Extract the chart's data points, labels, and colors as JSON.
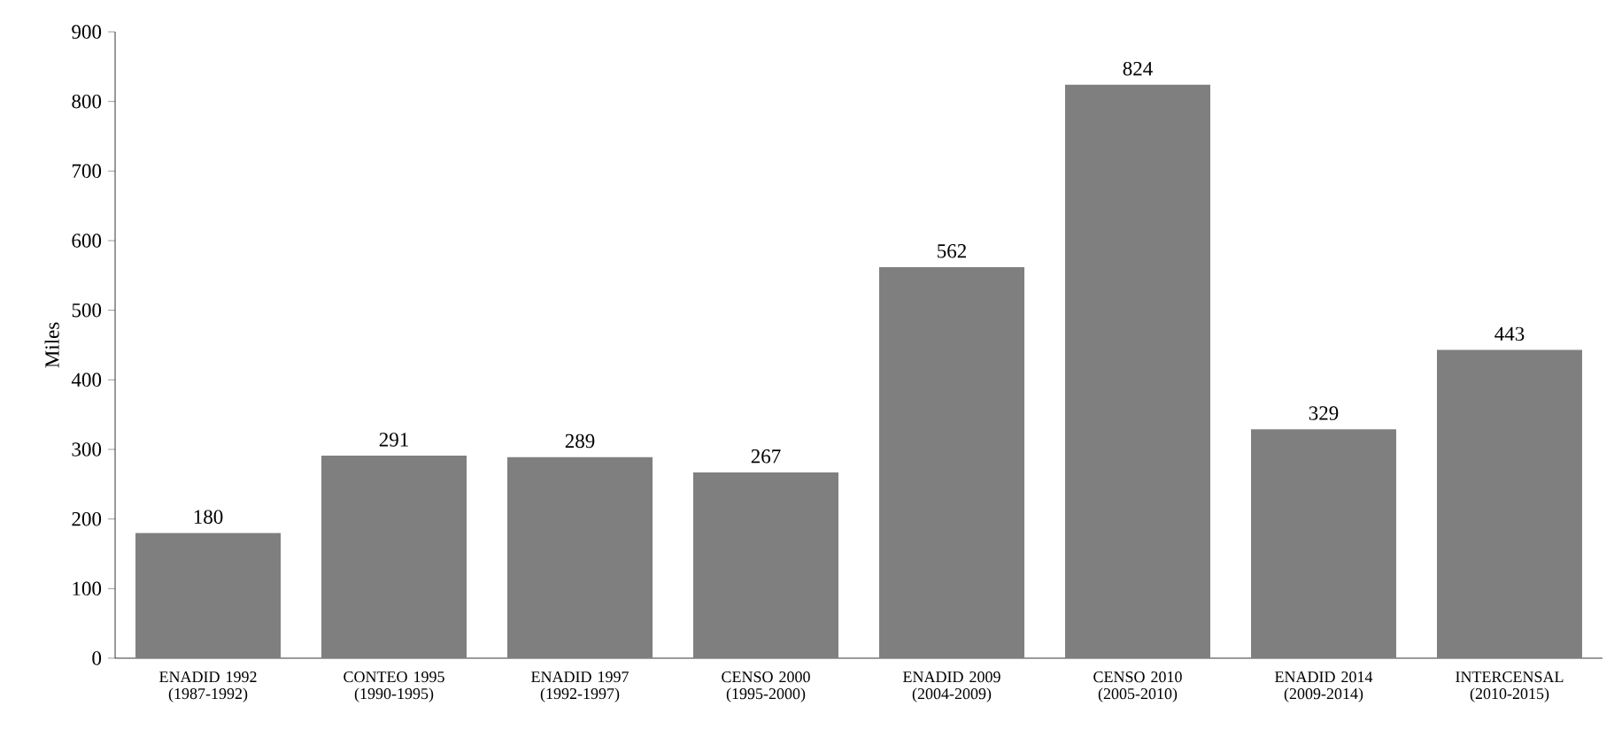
{
  "chart_data": {
    "type": "bar",
    "ylabel": "Miles",
    "categories": [
      "ENADID 1992 (1987-1992)",
      "CONTEO 1995 (1990-1995)",
      "ENADID 1997 (1992-1997)",
      "CENSO 2000 (1995-2000)",
      "ENADID 2009 (2004-2009)",
      "CENSO 2010 (2005-2010)",
      "ENADID 2014 (2009-2014)",
      "INTERCENSAL (2010-2015)"
    ],
    "values": [
      180,
      291,
      289,
      267,
      562,
      824,
      329,
      443
    ],
    "color": "#7f7f7f",
    "ylim": [
      0,
      900
    ],
    "yticks": [
      0,
      100,
      200,
      300,
      400,
      500,
      600,
      700,
      800,
      900
    ],
    "grid": false,
    "data_labels": true
  }
}
